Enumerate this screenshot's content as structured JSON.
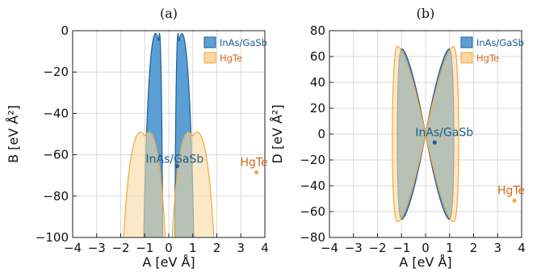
{
  "colors": {
    "inas_fill": "#5b9fd4",
    "inas_edge": "#1f5f99",
    "inas_text": "#1a5c8e",
    "hgte_fill": "#f7d9a0",
    "hgte_edge": "#f0a840",
    "hgte_text": "#d2691e",
    "overlap_fill": "#b7b592",
    "grid": "#d8d8d8"
  },
  "chart_data": [
    {
      "type": "area",
      "panel_label": "(a)",
      "xlabel": "A [eV Å]",
      "ylabel": "B [eV Å²]",
      "xlim": [
        -4,
        4
      ],
      "ylim": [
        -100,
        0
      ],
      "xticks": [
        "−4",
        "−3",
        "−2",
        "−1",
        "0",
        "1",
        "2",
        "3",
        "4"
      ],
      "yticks": [
        "0",
        "−20",
        "−40",
        "−60",
        "−80",
        "−100"
      ],
      "grid": true,
      "legend": {
        "placement": "top-right",
        "entries": [
          "InAs/GaSb",
          "HgTe"
        ]
      },
      "series": [
        {
          "name": "InAs/GaSb",
          "regions": [
            {
              "x": [
                -1.05,
                -0.25
              ],
              "peak_x": -0.42,
              "peak_y": -5
            },
            {
              "x": [
                0.25,
                1.05
              ],
              "peak_x": 0.42,
              "peak_y": -5
            }
          ]
        },
        {
          "name": "HgTe",
          "regions": [
            {
              "x": [
                -1.9,
                -0.12
              ],
              "peak_x": -1.0,
              "peak_y": -51
            },
            {
              "x": [
                0.12,
                1.9
              ],
              "peak_x": 1.0,
              "peak_y": -51
            }
          ]
        }
      ],
      "points": [
        {
          "label": "InAs/GaSb",
          "x": 0.35,
          "y": -65.5
        },
        {
          "label": "HgTe",
          "x": 3.65,
          "y": -68.5
        }
      ]
    },
    {
      "type": "area",
      "panel_label": "(b)",
      "xlabel": "A [eV Å]",
      "ylabel": "D [eV Å²]",
      "xlim": [
        -4,
        4
      ],
      "ylim": [
        -80,
        80
      ],
      "xticks": [
        "−4",
        "−3",
        "−2",
        "−1",
        "0",
        "1",
        "2",
        "3",
        "4"
      ],
      "yticks": [
        "80",
        "60",
        "40",
        "20",
        "0",
        "−20",
        "−40",
        "−60",
        "−80"
      ],
      "grid": true,
      "legend": {
        "placement": "top-right",
        "entries": [
          "InAs/GaSb",
          "HgTe"
        ]
      },
      "series": [
        {
          "name": "InAs/GaSb",
          "lobe_extent_x": 1.15,
          "lobe_extent_y": 66
        },
        {
          "name": "HgTe",
          "lobe_extent_x": 1.35,
          "lobe_extent_y": 68
        }
      ],
      "points": [
        {
          "label": "InAs/GaSb",
          "x": 0.38,
          "y": -6.5
        },
        {
          "label": "HgTe",
          "x": 3.7,
          "y": -51.5
        }
      ]
    }
  ]
}
